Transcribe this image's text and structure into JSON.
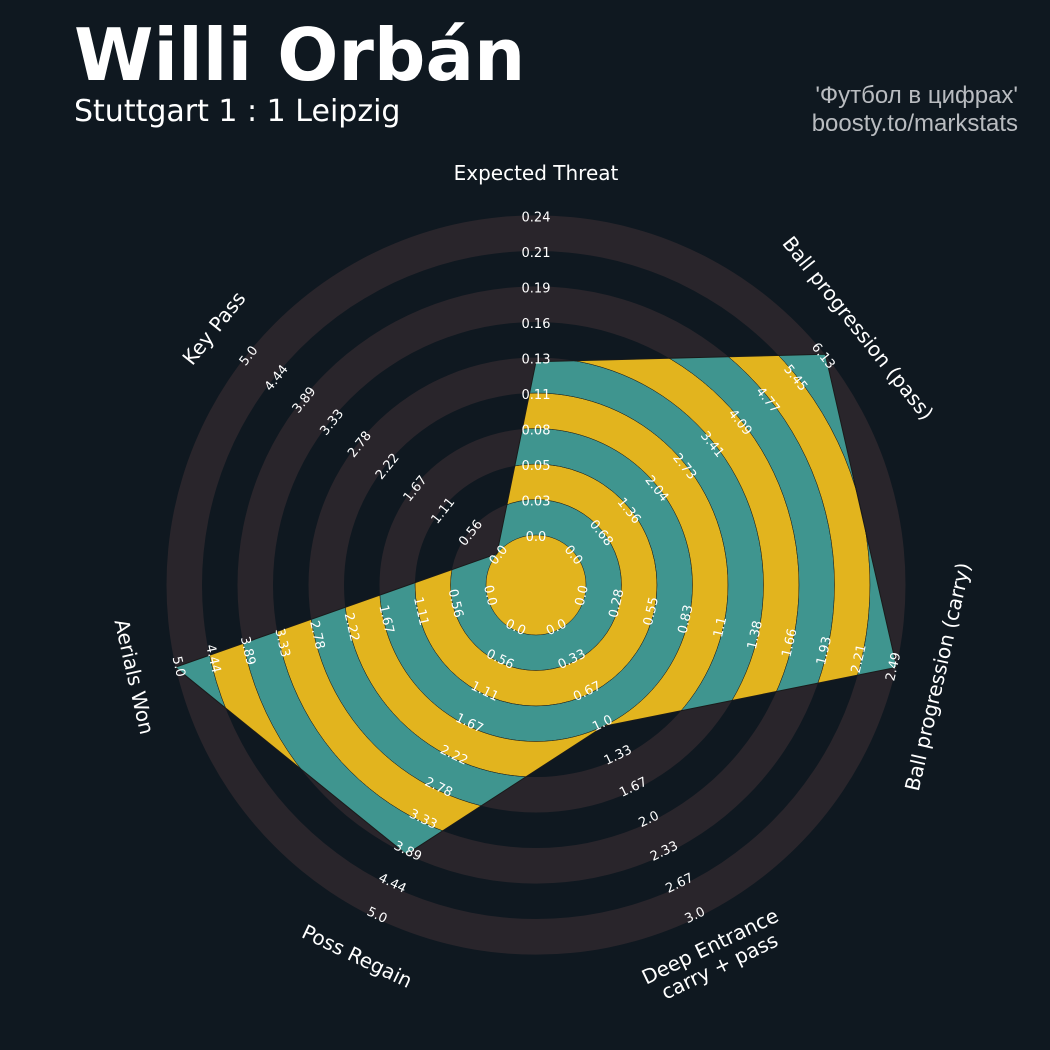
{
  "header": {
    "player": "Willi Orbán",
    "match": "Stuttgart 1 : 1 Leipzig",
    "credit_line1": "'Футбол в цифрах'",
    "credit_line2": "boosty.to/markstats"
  },
  "colors": {
    "background": "#0f1820",
    "ring_band": "#29252b",
    "fill_teal": "#3f958f",
    "fill_gold": "#e2b41e",
    "text": "#ffffff",
    "credit": "#b9bcc0"
  },
  "chart_data": {
    "type": "radar",
    "title": "Willi Orbán",
    "subtitle": "Stuttgart 1 : 1 Leipzig",
    "parameters": [
      "Expected Threat",
      "Ball progression (pass)",
      "Ball progression (carry)",
      "Deep Entrance\ncarry + pass",
      "Poss Regain",
      "Aerials Won",
      "Key Pass"
    ],
    "values": [
      0.13,
      6.13,
      2.49,
      1.0,
      3.89,
      5.0,
      0.0
    ],
    "ranges": [
      [
        0,
        0.24
      ],
      [
        0,
        6.13
      ],
      [
        0,
        2.49
      ],
      [
        0,
        3.0
      ],
      [
        0,
        5.0
      ],
      [
        0,
        5.0
      ],
      [
        0,
        5.0
      ]
    ],
    "tick_labels": [
      [
        "0.0",
        "0.03",
        "0.05",
        "0.08",
        "0.11",
        "0.13",
        "0.16",
        "0.19",
        "0.21",
        "0.24"
      ],
      [
        "0.0",
        "0.68",
        "1.36",
        "2.04",
        "2.73",
        "3.41",
        "4.09",
        "4.77",
        "5.45",
        "6.13"
      ],
      [
        "0.0",
        "0.28",
        "0.55",
        "0.83",
        "1.1",
        "1.38",
        "1.66",
        "1.93",
        "2.21",
        "2.49"
      ],
      [
        "0.0",
        "0.33",
        "0.67",
        "1.0",
        "1.33",
        "1.67",
        "2.0",
        "2.33",
        "2.67",
        "3.0"
      ],
      [
        "0.0",
        "0.56",
        "1.11",
        "1.67",
        "2.22",
        "2.78",
        "3.33",
        "3.89",
        "4.44",
        "5.0"
      ],
      [
        "0.0",
        "0.56",
        "1.11",
        "1.67",
        "2.22",
        "2.78",
        "3.33",
        "3.89",
        "4.44",
        "5.0"
      ],
      [
        "0.0",
        "0.56",
        "1.11",
        "1.67",
        "2.22",
        "2.78",
        "3.33",
        "3.89",
        "4.44",
        "5.0"
      ]
    ]
  }
}
